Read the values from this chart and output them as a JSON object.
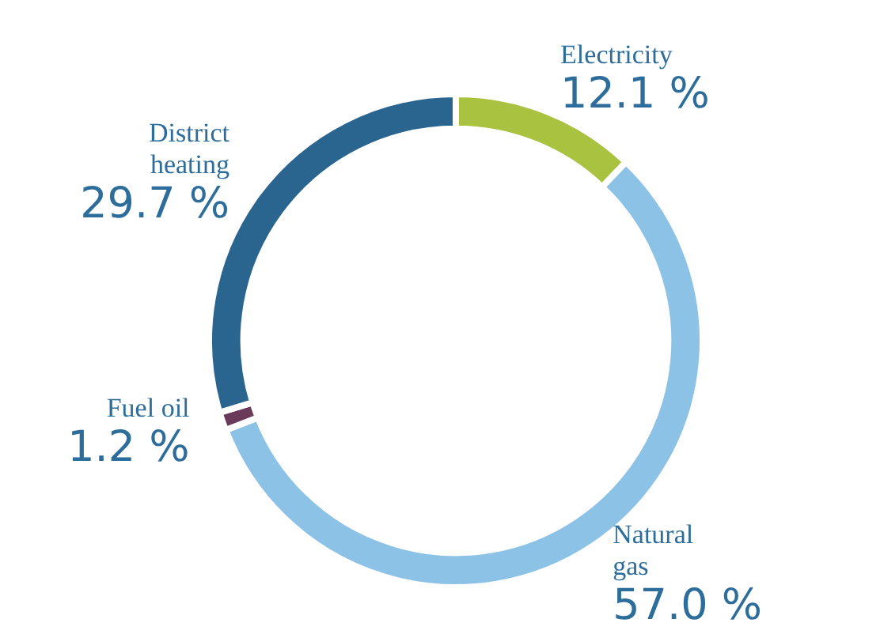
{
  "chart_data": {
    "type": "donut",
    "categories": [
      "Electricity",
      "Natural gas",
      "Fuel oil",
      "District heating"
    ],
    "values": [
      12.1,
      57.0,
      1.2,
      29.7
    ],
    "value_labels": [
      "12.1 %",
      "57.0 %",
      "1.2 %",
      "29.7 %"
    ],
    "colors": [
      "#a9c23f",
      "#8cc2e6",
      "#6b3a5a",
      "#2a6590"
    ],
    "legend": false
  }
}
